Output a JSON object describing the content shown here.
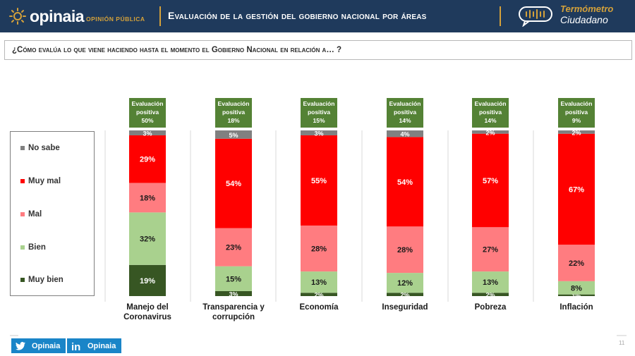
{
  "header": {
    "brand": "opinaia",
    "brand_sub": "OPINIÓN PÚBLICA",
    "title": "Evaluación de la gestión del gobierno nacional por áreas",
    "badge_title": "Termómetro",
    "badge_sub": "Ciudadano",
    "colors": {
      "bar": "#1f3a5c",
      "accent": "#d4a13a"
    }
  },
  "question": "¿Cómo evalúa lo que viene haciendo hasta el momento el Gobierno Nacional en relación a… ?",
  "legend": [
    {
      "label": "No sabe",
      "color": "#808080"
    },
    {
      "label": "Muy mal",
      "color": "#ff0000"
    },
    {
      "label": "Mal",
      "color": "#ff7c80"
    },
    {
      "label": "Bien",
      "color": "#a9d18e"
    },
    {
      "label": "Muy bien",
      "color": "#375623"
    }
  ],
  "chart_data": {
    "type": "bar",
    "stacked": true,
    "normalized": true,
    "categories": [
      [
        "Manejo del",
        "Coronavirus"
      ],
      [
        "Transparencia y",
        "corrupción"
      ],
      [
        "Economía"
      ],
      [
        "Inseguridad"
      ],
      [
        "Pobreza"
      ],
      [
        "Inflación"
      ]
    ],
    "series": [
      {
        "name": "Muy bien",
        "color": "#375623",
        "values": [
          19,
          3,
          2,
          2,
          2,
          1
        ]
      },
      {
        "name": "Bien",
        "color": "#a9d18e",
        "values": [
          32,
          15,
          13,
          12,
          13,
          8
        ]
      },
      {
        "name": "Mal",
        "color": "#ff7c80",
        "values": [
          18,
          23,
          28,
          28,
          27,
          22
        ]
      },
      {
        "name": "Muy mal",
        "color": "#ff0000",
        "values": [
          29,
          54,
          55,
          54,
          57,
          67
        ]
      },
      {
        "name": "No sabe",
        "color": "#808080",
        "values": [
          3,
          5,
          3,
          4,
          2,
          2
        ]
      }
    ],
    "value_suffix": "%",
    "callout_label": [
      "Evaluación",
      "positiva"
    ],
    "callout_values": [
      "50%",
      "18%",
      "15%",
      "14%",
      "14%",
      "9%"
    ],
    "callout_color": "#548235",
    "legend_position": "left",
    "grid": false
  },
  "footer": {
    "twitter": "Opinaia",
    "linkedin": "Opinaia",
    "page": "11"
  }
}
